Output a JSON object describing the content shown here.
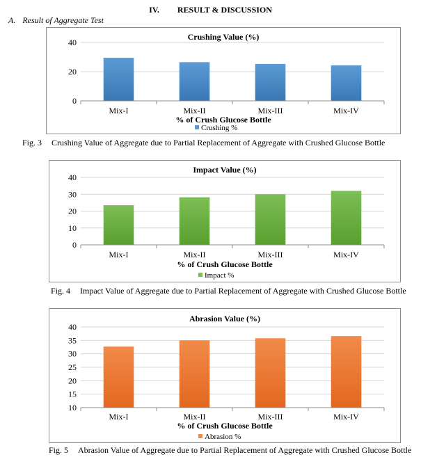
{
  "section": {
    "number": "IV.",
    "title": "RESULT & DISCUSSION"
  },
  "subsection": {
    "letter": "A.",
    "title": "Result of Aggregate Test"
  },
  "chart_data": [
    {
      "type": "bar",
      "title": "Crushing Value (%)",
      "categories": [
        "Mix-I",
        "Mix-II",
        "Mix-III",
        "Mix-IV"
      ],
      "series": [
        {
          "name": "Crushing %",
          "values": [
            29.5,
            26.5,
            25.3,
            24.3
          ]
        }
      ],
      "xlabel": "% of Crush Glucose Bottle",
      "ylabel": "",
      "ylim": [
        0,
        40
      ],
      "yticks": [
        0,
        20,
        40
      ],
      "grid": true,
      "legend": "bottom",
      "color": "#5B9BD5",
      "color_dark": "#3A78B5"
    },
    {
      "type": "bar",
      "title": "Impact Value (%)",
      "categories": [
        "Mix-I",
        "Mix-II",
        "Mix-III",
        "Mix-IV"
      ],
      "series": [
        {
          "name": "Impact %",
          "values": [
            23.5,
            28.2,
            30.0,
            32.0
          ]
        }
      ],
      "xlabel": "% of Crush Glucose Bottle",
      "ylabel": "",
      "ylim": [
        0,
        40
      ],
      "yticks": [
        0,
        10,
        20,
        30,
        40
      ],
      "grid": true,
      "legend": "bottom",
      "color": "#7DBE55",
      "color_dark": "#58A02F"
    },
    {
      "type": "bar",
      "title": "Abrasion Value (%)",
      "categories": [
        "Mix-I",
        "Mix-II",
        "Mix-III",
        "Mix-IV"
      ],
      "series": [
        {
          "name": "Abrasion %",
          "values": [
            32.7,
            35.0,
            35.8,
            36.6
          ]
        }
      ],
      "xlabel": "% of Crush Glucose Bottle",
      "ylabel": "",
      "ylim": [
        10,
        40
      ],
      "yticks": [
        10,
        15,
        20,
        25,
        30,
        35,
        40
      ],
      "grid": true,
      "legend": "bottom",
      "color": "#F28A4A",
      "color_dark": "#E2681F"
    }
  ],
  "captions": [
    {
      "label": "Fig. 3",
      "text": "Crushing Value of Aggregate due to Partial Replacement of Aggregate with Crushed Glucose Bottle"
    },
    {
      "label": "Fig. 4",
      "text": "Impact Value of Aggregate due to Partial Replacement of Aggregate with Crushed Glucose Bottle"
    },
    {
      "label": "Fig. 5",
      "text": "Abrasion Value of Aggregate due to Partial Replacement of Aggregate with Crushed Glucose Bottle"
    }
  ]
}
